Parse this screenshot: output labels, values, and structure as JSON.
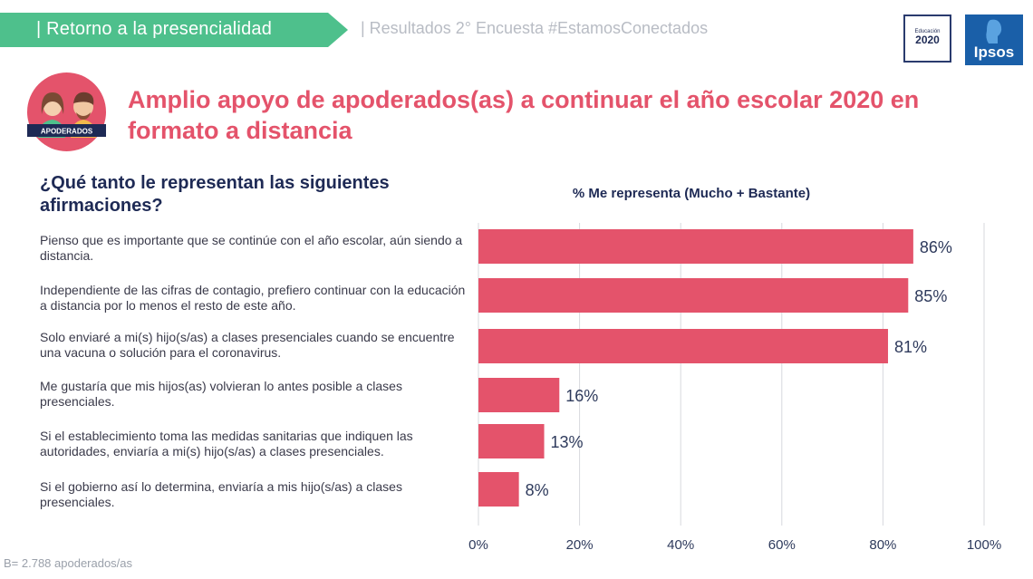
{
  "header": {
    "section_title": "| Retorno a la presencialidad",
    "subtitle": "| Resultados 2° Encuesta #EstamosConectados"
  },
  "logos": {
    "educacion_small": "Educación",
    "educacion_year": "2020",
    "ipsos": "Ipsos"
  },
  "badge": {
    "label": "APODERADOS"
  },
  "main_title": "Amplio apoyo de apoderados(as) a continuar el año escolar 2020 en formato a distancia",
  "question": "¿Qué tanto le representan las siguientes afirmaciones?",
  "colors": {
    "accent": "#e4536b",
    "header_green": "#4ec08c",
    "navy": "#1e2a55",
    "ipsos_blue": "#1a5fa8"
  },
  "chart_data": {
    "type": "bar",
    "orientation": "horizontal",
    "title": "% Me representa (Mucho + Bastante)",
    "categories": [
      "Pienso que es importante que se continúe con el año escolar, aún siendo a distancia.",
      "Independiente de las cifras de contagio, prefiero continuar con la educación a distancia por lo menos el resto de este año.",
      "Solo enviaré a mi(s) hijo(s/as) a clases presenciales cuando se encuentre una vacuna o solución para el coronavirus.",
      "Me gustaría que mis hijos(as) volvieran lo antes posible a clases presenciales.",
      "Si el establecimiento toma las medidas sanitarias que indiquen las autoridades, enviaría a mi(s) hijo(s/as) a clases presenciales.",
      "Si el gobierno así lo determina, enviaría a mis hijo(s/as) a clases presenciales."
    ],
    "values": [
      86,
      85,
      81,
      16,
      13,
      8
    ],
    "value_labels": [
      "86%",
      "85%",
      "81%",
      "16%",
      "13%",
      "8%"
    ],
    "xlim": [
      0,
      100
    ],
    "x_ticks": [
      "0%",
      "20%",
      "40%",
      "60%",
      "80%",
      "100%"
    ],
    "grid": true,
    "bar_color": "#e4536b"
  },
  "footnote": "B= 2.788 apoderados/as"
}
